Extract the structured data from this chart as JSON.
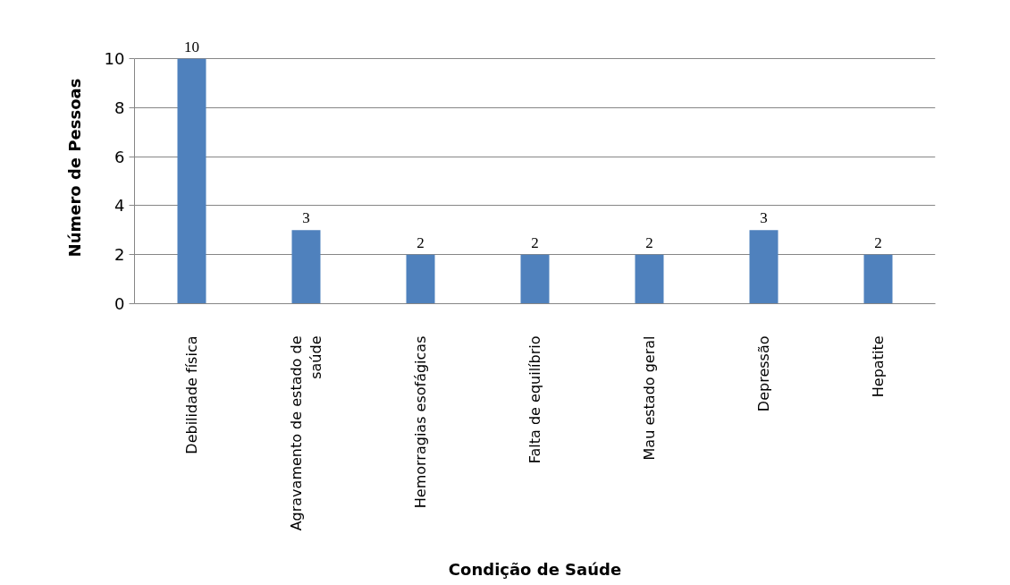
{
  "chart_data": {
    "type": "bar",
    "xlabel": "Condição de Saúde",
    "ylabel": "Número de Pessoas",
    "categories": [
      "Debilidade física",
      "Agravamento de estado de saúde",
      "Hemorragias esofágicas",
      "Falta de equilíbrio",
      "Mau estado geral",
      "Depressão",
      "Hepatite"
    ],
    "values": [
      10,
      3,
      2,
      2,
      2,
      3,
      2
    ],
    "color": "#4f81bd",
    "ylim": [
      0,
      10
    ],
    "yticks": [
      0,
      2,
      4,
      6,
      8,
      10
    ],
    "grid": "y",
    "data_labels": true
  }
}
